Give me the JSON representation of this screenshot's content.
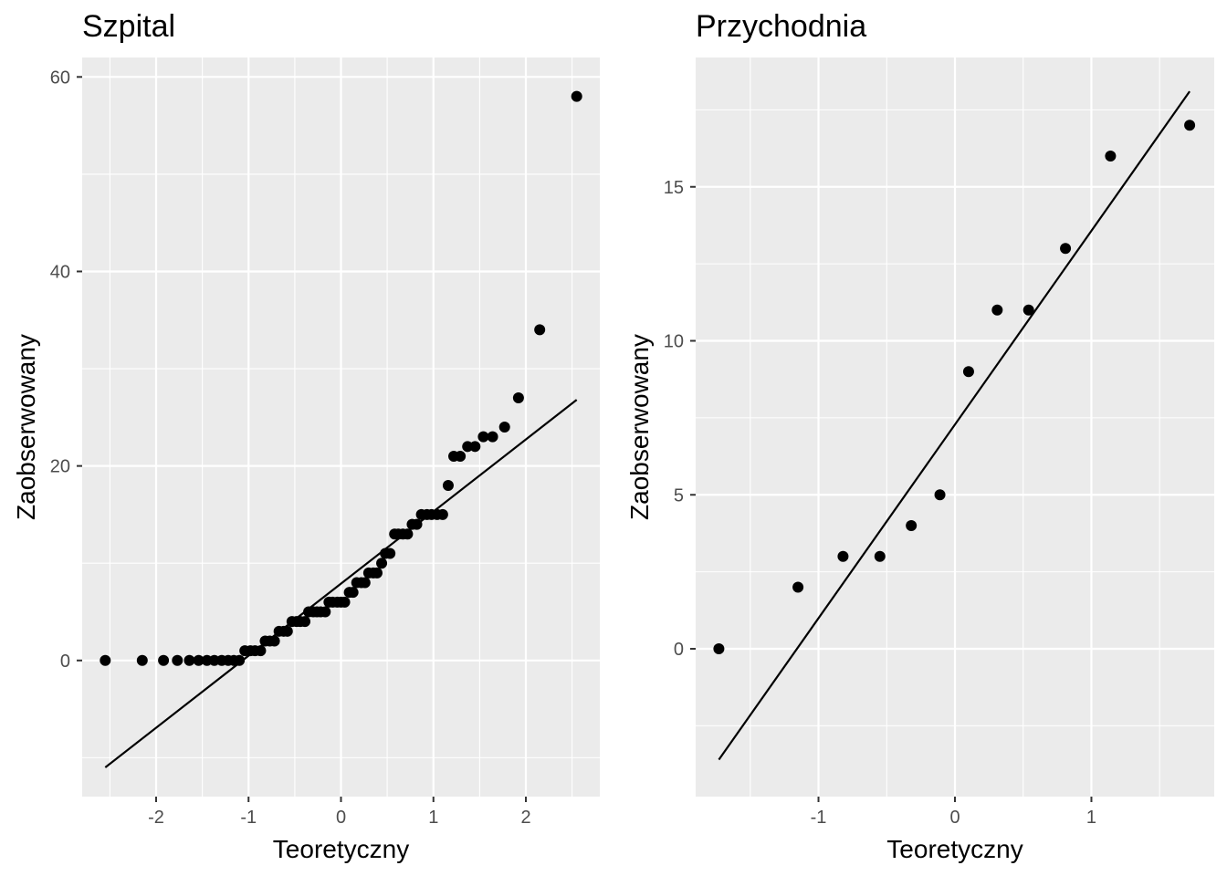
{
  "chart_data": [
    {
      "type": "scatter",
      "subtype": "qq-plot",
      "title": "Szpital",
      "xlabel": "Teoretyczny",
      "ylabel": "Zaobserwowany",
      "xlim": [
        -2.8,
        2.8
      ],
      "ylim": [
        -14,
        62
      ],
      "xticks": [
        -2,
        -1,
        0,
        1,
        2
      ],
      "yticks": [
        0,
        20,
        40,
        60
      ],
      "grid": true,
      "background": "#ebebeb",
      "point_color": "#000000",
      "x": [
        -2.55,
        -2.15,
        -1.92,
        -1.77,
        -1.64,
        -1.54,
        -1.45,
        -1.37,
        -1.29,
        -1.22,
        -1.16,
        -1.1,
        -1.04,
        -0.98,
        -0.93,
        -0.87,
        -0.82,
        -0.77,
        -0.72,
        -0.67,
        -0.62,
        -0.58,
        -0.53,
        -0.48,
        -0.44,
        -0.39,
        -0.35,
        -0.3,
        -0.26,
        -0.22,
        -0.17,
        -0.13,
        -0.09,
        -0.04,
        0.0,
        0.04,
        0.09,
        0.13,
        0.17,
        0.22,
        0.26,
        0.3,
        0.35,
        0.39,
        0.44,
        0.48,
        0.53,
        0.58,
        0.62,
        0.67,
        0.72,
        0.77,
        0.82,
        0.87,
        0.93,
        0.98,
        1.04,
        1.1,
        1.16,
        1.22,
        1.29,
        1.37,
        1.45,
        1.54,
        1.64,
        1.77,
        1.92,
        2.15,
        2.55
      ],
      "y": [
        0,
        0,
        0,
        0,
        0,
        0,
        0,
        0,
        0,
        0,
        0,
        0,
        1,
        1,
        1,
        1,
        2,
        2,
        2,
        3,
        3,
        3,
        4,
        4,
        4,
        4,
        5,
        5,
        5,
        5,
        5,
        6,
        6,
        6,
        6,
        6,
        7,
        7,
        8,
        8,
        8,
        9,
        9,
        9,
        10,
        11,
        11,
        13,
        13,
        13,
        13,
        14,
        14,
        15,
        15,
        15,
        15,
        15,
        18,
        21,
        21,
        22,
        22,
        23,
        23,
        24,
        27,
        34,
        58
      ],
      "reference_line": {
        "x": [
          -2.55,
          2.55
        ],
        "y": [
          -11,
          26.8
        ]
      }
    },
    {
      "type": "scatter",
      "subtype": "qq-plot",
      "title": "Przychodnia",
      "xlabel": "Teoretyczny",
      "ylabel": "Zaobserwowany",
      "xlim": [
        -1.9,
        1.9
      ],
      "ylim": [
        -4.8,
        19.2
      ],
      "xticks": [
        -1,
        0,
        1
      ],
      "yticks": [
        0,
        5,
        10,
        15
      ],
      "grid": true,
      "background": "#ebebeb",
      "point_color": "#000000",
      "x": [
        -1.73,
        -1.15,
        -0.82,
        -0.55,
        -0.32,
        -0.11,
        0.1,
        0.31,
        0.54,
        0.81,
        1.14,
        1.72
      ],
      "y": [
        0,
        2,
        3,
        3,
        4,
        5,
        9,
        11,
        11,
        13,
        16,
        17
      ],
      "reference_line": {
        "x": [
          -1.73,
          1.72
        ],
        "y": [
          -3.6,
          18.1
        ]
      }
    }
  ]
}
